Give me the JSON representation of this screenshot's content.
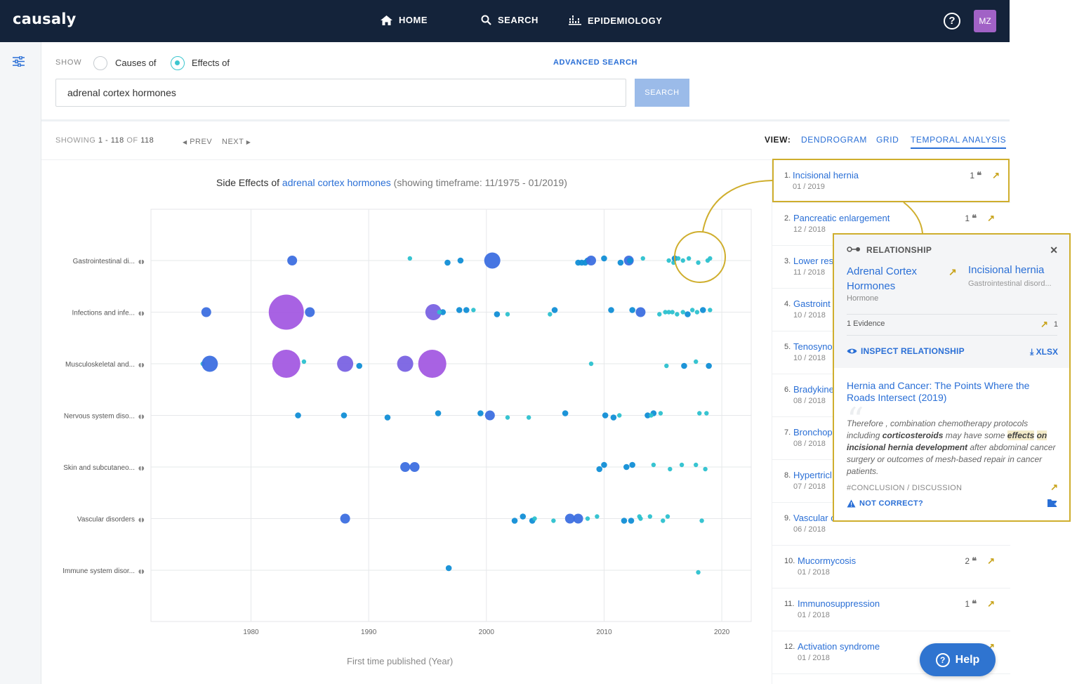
{
  "app": {
    "logo": "causaly"
  },
  "nav": {
    "home": "HOME",
    "search": "SEARCH",
    "epidemiology": "EPIDEMIOLOGY",
    "help_icon": "?",
    "avatar": "MZ"
  },
  "search": {
    "show_label": "SHOW",
    "causes_label": "Causes of",
    "effects_label": "Effects of",
    "selected": "effects",
    "advanced_label": "ADVANCED SEARCH",
    "query": "adrenal cortex hormones",
    "button": "SEARCH"
  },
  "results": {
    "showing_label": "SHOWING",
    "range": "1 - 118",
    "of_label": "OF",
    "total": "118",
    "prev": "PREV",
    "next": "NEXT",
    "view_label": "VIEW:",
    "views": [
      "DENDROGRAM",
      "GRID",
      "TEMPORAL ANALYSIS"
    ],
    "active_view": "TEMPORAL ANALYSIS"
  },
  "chart_title": {
    "prefix": "Side Effects of",
    "term": "adrenal cortex hormones",
    "timeframe": "(showing timeframe: 11/1975 - 01/2019)"
  },
  "chart_data": {
    "type": "scatter",
    "xlabel": "First time published (Year)",
    "xlim": [
      1971.5,
      2022.5
    ],
    "xticks": [
      1980,
      1990,
      2000,
      2010,
      2020
    ],
    "grid": true,
    "categories": [
      "Gastrointestinal di...",
      "Infections and infe...",
      "Musculoskeletal and...",
      "Nervous system diso...",
      "Skin and subcutaneo...",
      "Vascular disorders",
      "Immune system disor..."
    ],
    "colors": {
      "small": "#2cc1cf",
      "medium": "#118ed6",
      "large": "#3d6fe0",
      "xlarge": "#7a63e3",
      "xxlarge": "#a35ae1"
    },
    "points": [
      {
        "cat": 0,
        "x": 1983.5,
        "s": 3
      },
      {
        "cat": 0,
        "x": 1993.5,
        "s": 1
      },
      {
        "cat": 0,
        "x": 1996.7,
        "s": 2
      },
      {
        "cat": 0,
        "x": 1997.8,
        "s": 2
      },
      {
        "cat": 0,
        "x": 2000.5,
        "s": 4
      },
      {
        "cat": 0,
        "x": 2007.8,
        "s": 2
      },
      {
        "cat": 0,
        "x": 2008.1,
        "s": 2
      },
      {
        "cat": 0,
        "x": 2008.4,
        "s": 2
      },
      {
        "cat": 0,
        "x": 2008.6,
        "s": 2
      },
      {
        "cat": 0,
        "x": 2008.9,
        "s": 3
      },
      {
        "cat": 0,
        "x": 2010.0,
        "s": 2
      },
      {
        "cat": 0,
        "x": 2011.4,
        "s": 2
      },
      {
        "cat": 0,
        "x": 2012.1,
        "s": 3
      },
      {
        "cat": 0,
        "x": 2012.2,
        "s": 2
      },
      {
        "cat": 0,
        "x": 2013.3,
        "s": 1
      },
      {
        "cat": 0,
        "x": 2015.5,
        "s": 1
      },
      {
        "cat": 0,
        "x": 2015.9,
        "s": 1
      },
      {
        "cat": 0,
        "x": 2016.0,
        "s": 2
      },
      {
        "cat": 0,
        "x": 2016.3,
        "s": 1
      },
      {
        "cat": 0,
        "x": 2016.7,
        "s": 1
      },
      {
        "cat": 0,
        "x": 2017.2,
        "s": 1
      },
      {
        "cat": 0,
        "x": 2018.0,
        "s": 1
      },
      {
        "cat": 0,
        "x": 2018.8,
        "s": 1
      },
      {
        "cat": 0,
        "x": 2019.0,
        "s": 1
      },
      {
        "cat": 1,
        "x": 1976.2,
        "s": 3
      },
      {
        "cat": 1,
        "x": 1983.0,
        "s": 6
      },
      {
        "cat": 1,
        "x": 1985.0,
        "s": 3
      },
      {
        "cat": 1,
        "x": 1995.5,
        "s": 4
      },
      {
        "cat": 1,
        "x": 1996.3,
        "s": 2
      },
      {
        "cat": 1,
        "x": 1996.0,
        "s": 1
      },
      {
        "cat": 1,
        "x": 1997.7,
        "s": 2
      },
      {
        "cat": 1,
        "x": 1998.3,
        "s": 2
      },
      {
        "cat": 1,
        "x": 1998.9,
        "s": 1
      },
      {
        "cat": 1,
        "x": 2000.9,
        "s": 2
      },
      {
        "cat": 1,
        "x": 2001.8,
        "s": 1
      },
      {
        "cat": 1,
        "x": 2005.4,
        "s": 1
      },
      {
        "cat": 1,
        "x": 2005.8,
        "s": 2
      },
      {
        "cat": 1,
        "x": 2010.6,
        "s": 2
      },
      {
        "cat": 1,
        "x": 2012.4,
        "s": 2
      },
      {
        "cat": 1,
        "x": 2013.1,
        "s": 3
      },
      {
        "cat": 1,
        "x": 2014.7,
        "s": 1
      },
      {
        "cat": 1,
        "x": 2015.2,
        "s": 1
      },
      {
        "cat": 1,
        "x": 2015.5,
        "s": 1
      },
      {
        "cat": 1,
        "x": 2015.8,
        "s": 1
      },
      {
        "cat": 1,
        "x": 2016.2,
        "s": 1
      },
      {
        "cat": 1,
        "x": 2016.7,
        "s": 1
      },
      {
        "cat": 1,
        "x": 2017.1,
        "s": 2
      },
      {
        "cat": 1,
        "x": 2017.5,
        "s": 1
      },
      {
        "cat": 1,
        "x": 2017.9,
        "s": 1
      },
      {
        "cat": 1,
        "x": 2018.4,
        "s": 2
      },
      {
        "cat": 1,
        "x": 2019.0,
        "s": 1
      },
      {
        "cat": 2,
        "x": 1975.9,
        "s": 1
      },
      {
        "cat": 2,
        "x": 1976.5,
        "s": 4
      },
      {
        "cat": 2,
        "x": 1983.0,
        "s": 5
      },
      {
        "cat": 2,
        "x": 1984.5,
        "s": 1
      },
      {
        "cat": 2,
        "x": 1988.0,
        "s": 4
      },
      {
        "cat": 2,
        "x": 1989.2,
        "s": 2
      },
      {
        "cat": 2,
        "x": 1993.1,
        "s": 4
      },
      {
        "cat": 2,
        "x": 1995.4,
        "s": 5
      },
      {
        "cat": 2,
        "x": 2008.9,
        "s": 1
      },
      {
        "cat": 2,
        "x": 2015.3,
        "s": 1
      },
      {
        "cat": 2,
        "x": 2016.8,
        "s": 2
      },
      {
        "cat": 2,
        "x": 2017.8,
        "s": 1
      },
      {
        "cat": 2,
        "x": 2018.9,
        "s": 2
      },
      {
        "cat": 3,
        "x": 1984.0,
        "s": 2
      },
      {
        "cat": 3,
        "x": 1987.9,
        "s": 2
      },
      {
        "cat": 3,
        "x": 1991.6,
        "s": 2
      },
      {
        "cat": 3,
        "x": 1995.9,
        "s": 2
      },
      {
        "cat": 3,
        "x": 1999.5,
        "s": 2
      },
      {
        "cat": 3,
        "x": 2000.3,
        "s": 3
      },
      {
        "cat": 3,
        "x": 2001.8,
        "s": 1
      },
      {
        "cat": 3,
        "x": 2003.6,
        "s": 1
      },
      {
        "cat": 3,
        "x": 2006.7,
        "s": 2
      },
      {
        "cat": 3,
        "x": 2010.1,
        "s": 2
      },
      {
        "cat": 3,
        "x": 2010.8,
        "s": 2
      },
      {
        "cat": 3,
        "x": 2011.3,
        "s": 1
      },
      {
        "cat": 3,
        "x": 2013.7,
        "s": 2
      },
      {
        "cat": 3,
        "x": 2014.2,
        "s": 2
      },
      {
        "cat": 3,
        "x": 2014.0,
        "s": 1
      },
      {
        "cat": 3,
        "x": 2014.8,
        "s": 1
      },
      {
        "cat": 3,
        "x": 2018.1,
        "s": 1
      },
      {
        "cat": 3,
        "x": 2018.7,
        "s": 1
      },
      {
        "cat": 4,
        "x": 1993.1,
        "s": 3
      },
      {
        "cat": 4,
        "x": 1993.9,
        "s": 3
      },
      {
        "cat": 4,
        "x": 2009.6,
        "s": 2
      },
      {
        "cat": 4,
        "x": 2010.0,
        "s": 2
      },
      {
        "cat": 4,
        "x": 2011.9,
        "s": 2
      },
      {
        "cat": 4,
        "x": 2012.4,
        "s": 2
      },
      {
        "cat": 4,
        "x": 2014.2,
        "s": 1
      },
      {
        "cat": 4,
        "x": 2015.6,
        "s": 1
      },
      {
        "cat": 4,
        "x": 2016.6,
        "s": 1
      },
      {
        "cat": 4,
        "x": 2017.8,
        "s": 1
      },
      {
        "cat": 4,
        "x": 2018.6,
        "s": 1
      },
      {
        "cat": 5,
        "x": 1988.0,
        "s": 3
      },
      {
        "cat": 5,
        "x": 2002.4,
        "s": 2
      },
      {
        "cat": 5,
        "x": 2003.1,
        "s": 2
      },
      {
        "cat": 5,
        "x": 2003.9,
        "s": 2
      },
      {
        "cat": 5,
        "x": 2004.1,
        "s": 1
      },
      {
        "cat": 5,
        "x": 2005.7,
        "s": 1
      },
      {
        "cat": 5,
        "x": 2007.1,
        "s": 3
      },
      {
        "cat": 5,
        "x": 2007.8,
        "s": 3
      },
      {
        "cat": 5,
        "x": 2008.6,
        "s": 1
      },
      {
        "cat": 5,
        "x": 2009.4,
        "s": 1
      },
      {
        "cat": 5,
        "x": 2011.7,
        "s": 2
      },
      {
        "cat": 5,
        "x": 2012.3,
        "s": 2
      },
      {
        "cat": 5,
        "x": 2013.0,
        "s": 1
      },
      {
        "cat": 5,
        "x": 2013.1,
        "s": 1
      },
      {
        "cat": 5,
        "x": 2013.9,
        "s": 1
      },
      {
        "cat": 5,
        "x": 2015.0,
        "s": 1
      },
      {
        "cat": 5,
        "x": 2015.4,
        "s": 1
      },
      {
        "cat": 5,
        "x": 2018.3,
        "s": 1
      },
      {
        "cat": 6,
        "x": 1996.8,
        "s": 2
      },
      {
        "cat": 6,
        "x": 2018.0,
        "s": 1
      }
    ]
  },
  "list": [
    {
      "num": "1.",
      "title": "Incisional hernia",
      "date": "01 / 2019",
      "count": "1"
    },
    {
      "num": "2.",
      "title": "Pancreatic enlargement",
      "date": "12 / 2018",
      "count": "1"
    },
    {
      "num": "3.",
      "title": "Lower res",
      "date": "11 / 2018",
      "count": ""
    },
    {
      "num": "4.",
      "title": "Gastroint",
      "date": "10 / 2018",
      "count": ""
    },
    {
      "num": "5.",
      "title": "Tenosyno",
      "date": "10 / 2018",
      "count": ""
    },
    {
      "num": "6.",
      "title": "Bradykine",
      "date": "08 / 2018",
      "count": ""
    },
    {
      "num": "7.",
      "title": "Bronchop",
      "date": "08 / 2018",
      "count": ""
    },
    {
      "num": "8.",
      "title": "Hypertricl",
      "date": "07 / 2018",
      "count": ""
    },
    {
      "num": "9.",
      "title": "Vascular c",
      "date": "06 / 2018",
      "count": ""
    },
    {
      "num": "10.",
      "title": "Mucormycosis",
      "date": "01 / 2018",
      "count": "2"
    },
    {
      "num": "11.",
      "title": "Immunosuppression",
      "date": "01 / 2018",
      "count": "1"
    },
    {
      "num": "12.",
      "title": "Activation syndrome",
      "date": "01 / 2018",
      "count": ""
    }
  ],
  "popup": {
    "label": "RELATIONSHIP",
    "entity_a": "Adrenal Cortex Hormones",
    "entity_a_type": "Hormone",
    "entity_b": "Incisional hernia",
    "entity_b_type": "Gastrointestinal disord...",
    "evidence_label": "1 Evidence",
    "evidence_count": "1",
    "inspect": "INSPECT RELATIONSHIP",
    "xlsx": "XLSX",
    "paper_title": "Hernia and Cancer: The Points Where the Roads Intersect (2019)",
    "excerpt": {
      "p1": "Therefore , combination chemotherapy protocols including ",
      "b1": "corticosteroids",
      "p2": " may have some ",
      "m1": "effects",
      "p3": " ",
      "m2": "on",
      "p4": " ",
      "b2": "incisional hernia development",
      "p5": " after abdominal cancer surgery or outcomes of mesh-based repair in cancer patients."
    },
    "section": "#CONCLUSION / DISCUSSION",
    "not_correct": "NOT CORRECT?"
  },
  "help_button": "Help"
}
